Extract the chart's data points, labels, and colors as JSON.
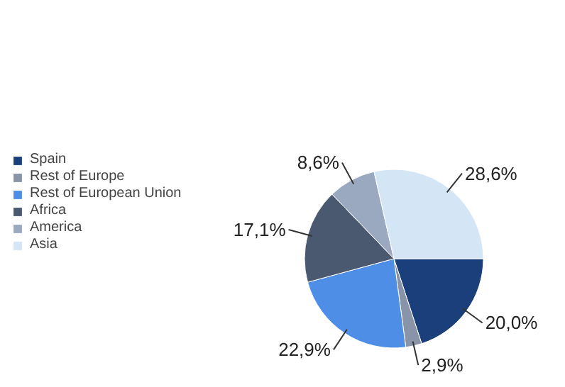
{
  "chart_data": {
    "type": "pie",
    "categories": [
      "Spain",
      "Rest of Europe",
      "Rest of European Union",
      "Africa",
      "America",
      "Asia"
    ],
    "values": [
      20.0,
      2.9,
      22.9,
      17.1,
      8.6,
      28.6
    ],
    "value_labels": [
      "20,0%",
      "2,9%",
      "22,9%",
      "17,1%",
      "8,6%",
      "28,6%"
    ],
    "colors": [
      "#1a3f7a",
      "#8a94a8",
      "#4f8ee6",
      "#4a5870",
      "#9aa8c0",
      "#d4e6f5"
    ],
    "legend": "left"
  }
}
